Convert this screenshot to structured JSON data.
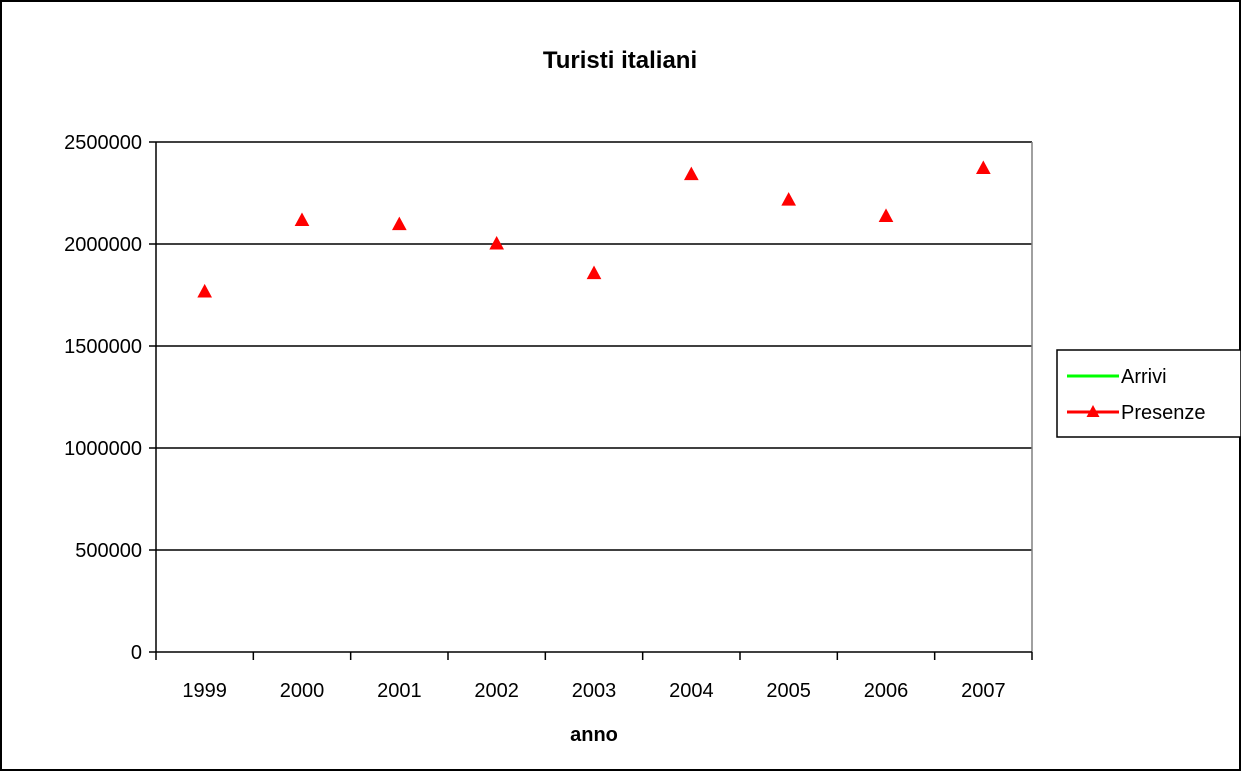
{
  "chart_data": {
    "type": "scatter",
    "title": "Turisti italiani",
    "xlabel": "anno",
    "ylabel": "",
    "categories": [
      "1999",
      "2000",
      "2001",
      "2002",
      "2003",
      "2004",
      "2005",
      "2006",
      "2007"
    ],
    "ylim": [
      0,
      2500000
    ],
    "yticks": [
      0,
      500000,
      1000000,
      1500000,
      2000000,
      2500000
    ],
    "grid": true,
    "legend": "right",
    "series": [
      {
        "name": "Arrivi",
        "values": [],
        "color": "#00ff00",
        "marker": "none"
      },
      {
        "name": "Presenze",
        "values": [
          1765000,
          2115000,
          2095000,
          2000000,
          1855000,
          2340000,
          2215000,
          2135000,
          2370000
        ],
        "color": "#ff0000",
        "marker": "triangle"
      }
    ]
  }
}
